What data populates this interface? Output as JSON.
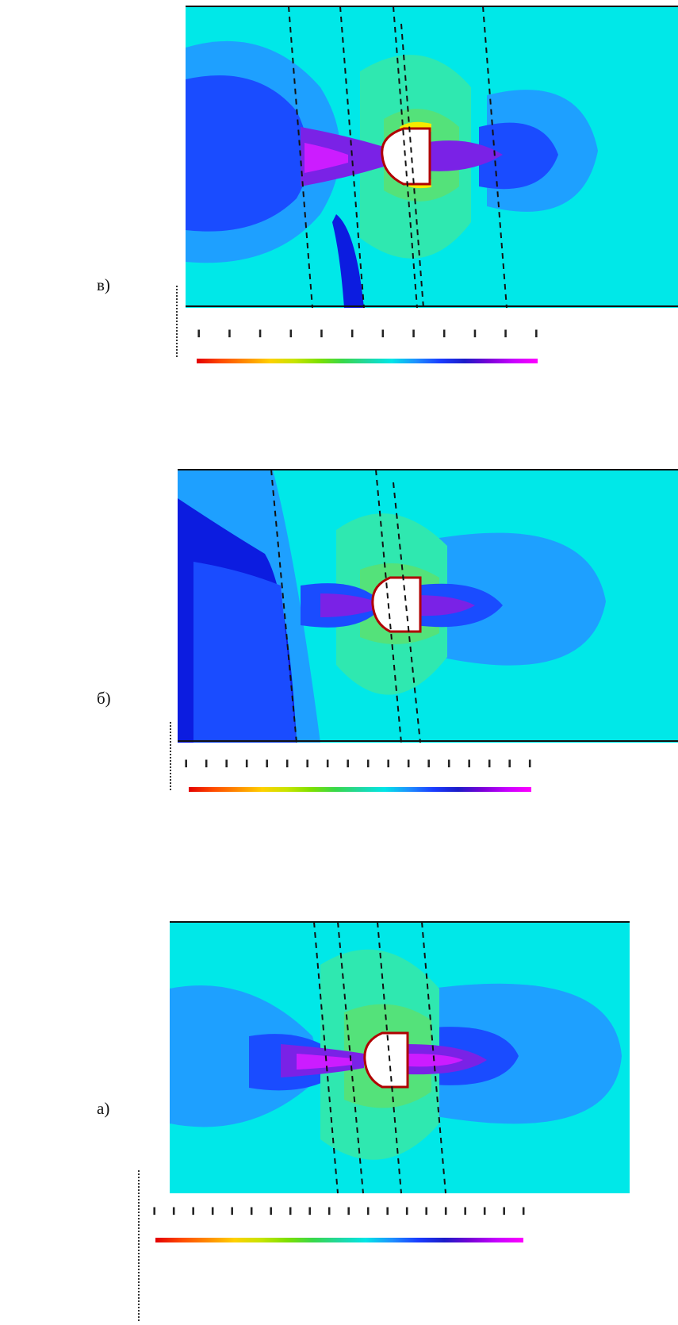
{
  "panels": [
    {
      "label": "в)",
      "variant": "v"
    },
    {
      "label": "б)",
      "variant": "b"
    },
    {
      "label": "а)",
      "variant": "a"
    }
  ],
  "colorscale": [
    "#e30000",
    "#ff4a00",
    "#ff8c00",
    "#ffd000",
    "#c8e400",
    "#7ee000",
    "#38d84a",
    "#20d8a0",
    "#00e6e6",
    "#1e90ff",
    "#1a3cff",
    "#1c1cc8",
    "#7a00d8",
    "#c800ff",
    "#ff00ff"
  ],
  "field_colors": {
    "background": "#00e8e8",
    "light_blue": "#1ea0ff",
    "blue": "#1a4cff",
    "dark_blue": "#0c1ce0",
    "violet": "#7a22e6",
    "magenta": "#cc1cff",
    "green_cyan": "#2fe8b0",
    "green": "#54e27a",
    "yellow": "#f5ea00",
    "orange": "#ff9400",
    "red": "#ff1a1a"
  }
}
